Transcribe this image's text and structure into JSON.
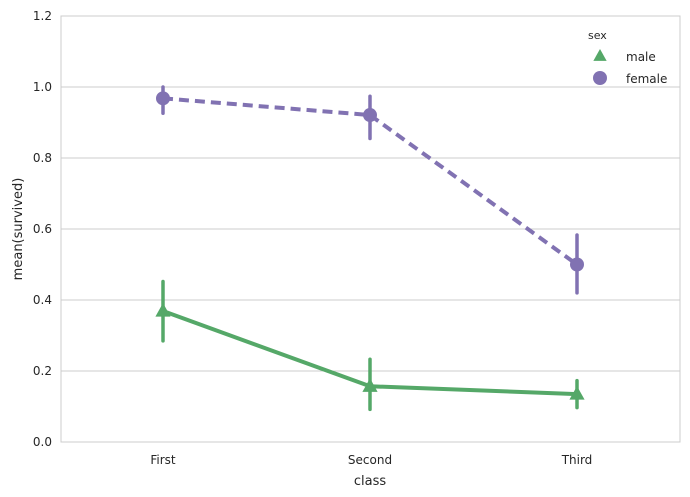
{
  "chart_data": {
    "type": "line",
    "xlabel": "class",
    "ylabel": "mean(survived)",
    "categories": [
      "First",
      "Second",
      "Third"
    ],
    "ylim": [
      0.0,
      1.2
    ],
    "yticks": [
      "0.0",
      "0.2",
      "0.4",
      "0.6",
      "0.8",
      "1.0",
      "1.2"
    ],
    "grid": "horizontal",
    "legend": {
      "title": "sex",
      "placement": "top-right"
    },
    "series": [
      {
        "name": "male",
        "color": "#55a868",
        "linestyle": "solid",
        "marker": "triangle",
        "values": [
          0.369,
          0.157,
          0.135
        ],
        "ci_low": [
          0.285,
          0.092,
          0.097
        ],
        "ci_high": [
          0.452,
          0.233,
          0.173
        ]
      },
      {
        "name": "female",
        "color": "#8172b2",
        "linestyle": "dashed",
        "marker": "circle",
        "values": [
          0.968,
          0.921,
          0.5
        ],
        "ci_low": [
          0.926,
          0.855,
          0.42
        ],
        "ci_high": [
          1.0,
          0.974,
          0.583
        ]
      }
    ]
  }
}
